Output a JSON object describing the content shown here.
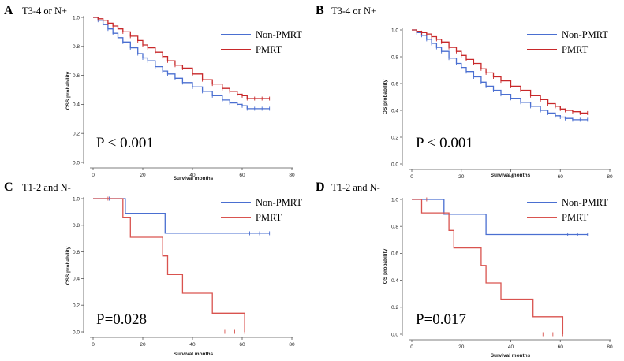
{
  "colors": {
    "non_pmrt": "#4a6fd1",
    "pmrt": "#c8282a",
    "pmrt_lower": "#d9534f"
  },
  "chart_data": [
    {
      "type": "line",
      "panel": "A",
      "title": "T3-4 or N+",
      "xlabel": "Survival months",
      "ylabel": "CSS probability",
      "xlim": [
        0,
        80
      ],
      "ylim": [
        0,
        1
      ],
      "x_ticks": [
        "0",
        "20",
        "40",
        "60",
        "80"
      ],
      "y_ticks": [
        "0.0",
        "0.2",
        "0.4",
        "0.6",
        "0.8",
        "1.0"
      ],
      "p_value": "P < 0.001",
      "legend": [
        "Non-PMRT",
        "PMRT"
      ],
      "series": [
        {
          "name": "Non-PMRT",
          "x": [
            0,
            2,
            4,
            6,
            8,
            10,
            12,
            15,
            18,
            20,
            22,
            25,
            28,
            30,
            33,
            36,
            40,
            44,
            48,
            52,
            55,
            58,
            60,
            62,
            65,
            68,
            71
          ],
          "values": [
            1.0,
            0.98,
            0.95,
            0.92,
            0.89,
            0.86,
            0.83,
            0.79,
            0.75,
            0.72,
            0.7,
            0.66,
            0.63,
            0.61,
            0.58,
            0.55,
            0.52,
            0.49,
            0.46,
            0.43,
            0.41,
            0.4,
            0.39,
            0.37,
            0.37,
            0.37,
            0.37
          ]
        },
        {
          "name": "PMRT",
          "x": [
            0,
            2,
            4,
            6,
            8,
            10,
            12,
            15,
            18,
            20,
            22,
            25,
            28,
            30,
            33,
            36,
            40,
            44,
            48,
            52,
            55,
            58,
            60,
            62,
            65,
            68,
            71
          ],
          "values": [
            1.0,
            0.99,
            0.98,
            0.96,
            0.94,
            0.92,
            0.9,
            0.87,
            0.84,
            0.81,
            0.79,
            0.76,
            0.73,
            0.7,
            0.67,
            0.65,
            0.61,
            0.57,
            0.54,
            0.51,
            0.49,
            0.47,
            0.46,
            0.44,
            0.44,
            0.44,
            0.44
          ]
        }
      ]
    },
    {
      "type": "line",
      "panel": "B",
      "title": "T3-4 or N+",
      "xlabel": "Survival.months",
      "ylabel": "OS probability",
      "xlim": [
        0,
        80
      ],
      "ylim": [
        0,
        1
      ],
      "x_ticks": [
        "0",
        "20",
        "40",
        "60",
        "80"
      ],
      "y_ticks": [
        "0.0",
        "0.2",
        "0.4",
        "0.6",
        "0.8",
        "1.0"
      ],
      "p_value": "P < 0.001",
      "legend": [
        "Non-PMRT",
        "PMRT"
      ],
      "series": [
        {
          "name": "Non-PMRT",
          "x": [
            0,
            2,
            4,
            6,
            8,
            10,
            12,
            15,
            18,
            20,
            22,
            25,
            28,
            30,
            33,
            36,
            40,
            44,
            48,
            52,
            55,
            58,
            60,
            62,
            65,
            68,
            71
          ],
          "values": [
            1.0,
            0.98,
            0.96,
            0.93,
            0.9,
            0.87,
            0.84,
            0.79,
            0.75,
            0.72,
            0.69,
            0.65,
            0.61,
            0.58,
            0.55,
            0.52,
            0.49,
            0.46,
            0.43,
            0.4,
            0.38,
            0.36,
            0.35,
            0.34,
            0.33,
            0.33,
            0.33
          ]
        },
        {
          "name": "PMRT",
          "x": [
            0,
            2,
            4,
            6,
            8,
            10,
            12,
            15,
            18,
            20,
            22,
            25,
            28,
            30,
            33,
            36,
            40,
            44,
            48,
            52,
            55,
            58,
            60,
            62,
            65,
            68,
            71
          ],
          "values": [
            1.0,
            0.99,
            0.98,
            0.97,
            0.95,
            0.93,
            0.91,
            0.87,
            0.84,
            0.81,
            0.78,
            0.75,
            0.71,
            0.68,
            0.65,
            0.62,
            0.58,
            0.55,
            0.51,
            0.48,
            0.45,
            0.43,
            0.41,
            0.4,
            0.39,
            0.38,
            0.38
          ]
        }
      ]
    },
    {
      "type": "line",
      "panel": "C",
      "title": "T1-2 and N-",
      "xlabel": "Survival months",
      "ylabel": "CSS probability",
      "xlim": [
        0,
        80
      ],
      "ylim": [
        0,
        1
      ],
      "x_ticks": [
        "0",
        "20",
        "40",
        "60",
        "80"
      ],
      "y_ticks": [
        "0.0",
        "0.2",
        "0.4",
        "0.6",
        "0.8",
        "1.0"
      ],
      "p_value": "P=0.028",
      "legend": [
        "Non-PMRT",
        "PMRT"
      ],
      "series": [
        {
          "name": "Non-PMRT",
          "x": [
            0,
            13,
            29,
            71
          ],
          "values": [
            1.0,
            0.89,
            0.74,
            0.74
          ]
        },
        {
          "name": "PMRT",
          "x": [
            0,
            12,
            15,
            28,
            30,
            36,
            48,
            61
          ],
          "values": [
            1.0,
            0.86,
            0.71,
            0.57,
            0.43,
            0.29,
            0.14,
            0.0
          ]
        }
      ]
    },
    {
      "type": "line",
      "panel": "D",
      "title": "T1-2 and N-",
      "xlabel": "Survival months",
      "ylabel": "OS probability",
      "xlim": [
        0,
        80
      ],
      "ylim": [
        0,
        1
      ],
      "x_ticks": [
        "0",
        "20",
        "40",
        "60",
        "80"
      ],
      "y_ticks": [
        "0.0",
        "0.2",
        "0.4",
        "0.6",
        "0.8",
        "1.0"
      ],
      "p_value": "P=0.017",
      "legend": [
        "Non-PMRT",
        "PMRT"
      ],
      "series": [
        {
          "name": "Non-PMRT",
          "x": [
            0,
            13,
            30,
            71
          ],
          "values": [
            1.0,
            0.89,
            0.74,
            0.74
          ]
        },
        {
          "name": "PMRT",
          "x": [
            0,
            4,
            15,
            17,
            28,
            30,
            36,
            49,
            61
          ],
          "values": [
            1.0,
            0.9,
            0.77,
            0.64,
            0.51,
            0.38,
            0.26,
            0.13,
            0.0
          ]
        }
      ]
    }
  ]
}
